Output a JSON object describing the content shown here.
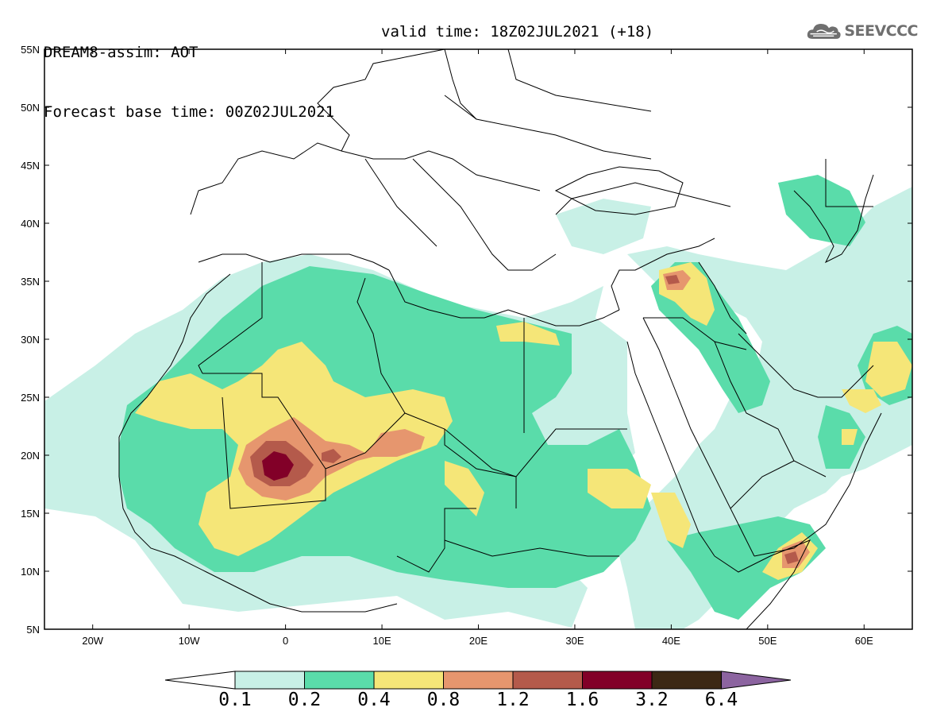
{
  "header": {
    "line1": "DREAM8-assim: AOT",
    "line2": "Forecast base time: 00Z02JUL2021",
    "valid": "valid time: 18Z02JUL2021 (+18)"
  },
  "logo": {
    "text": "SEEVCCC",
    "icon": "cloud-icon"
  },
  "axes": {
    "lat_labels": [
      "55N",
      "50N",
      "45N",
      "40N",
      "35N",
      "30N",
      "25N",
      "20N",
      "15N",
      "10N",
      "5N"
    ],
    "lon_labels": [
      "20W",
      "10W",
      "0",
      "10E",
      "20E",
      "30E",
      "40E",
      "50E",
      "60E"
    ],
    "lat_range": [
      5,
      55
    ],
    "lon_range": [
      -25,
      65
    ]
  },
  "colorbar": {
    "labels": [
      "0.1",
      "0.2",
      "0.4",
      "0.8",
      "1.2",
      "1.6",
      "3.2",
      "6.4"
    ],
    "colors": [
      "#ffffff",
      "#c8f0e6",
      "#5adcaa",
      "#f5e678",
      "#e6966e",
      "#b45a4b",
      "#820028",
      "#3c2814",
      "#8c64a0"
    ]
  }
}
